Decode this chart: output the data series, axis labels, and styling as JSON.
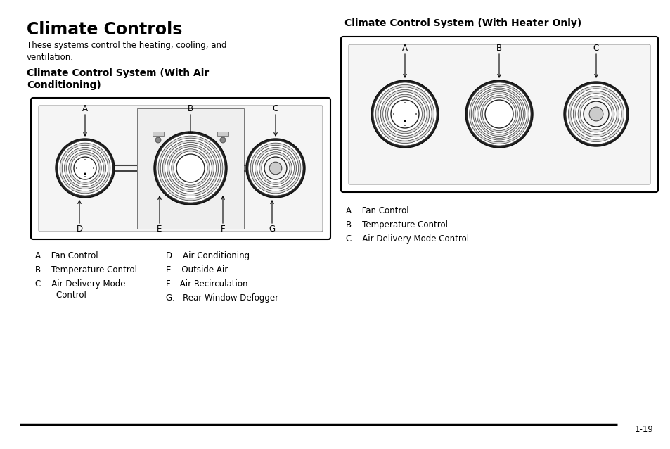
{
  "title": "Climate Controls",
  "subtitle": "These systems control the heating, cooling, and\nventilation.",
  "subheading1": "Climate Control System (With Air\nConditioning)",
  "subheading2": "Climate Control System (With Heater Only)",
  "items_col1": [
    "A.   Fan Control",
    "B.   Temperature Control",
    "C.   Air Delivery Mode\n        Control"
  ],
  "items_col2": [
    "D.   Air Conditioning",
    "E.   Outside Air",
    "F.   Air Recirculation",
    "G.   Rear Window Defogger"
  ],
  "right_labels": [
    "A.   Fan Control",
    "B.   Temperature Control",
    "C.   Air Delivery Mode Control"
  ],
  "page_num": "1-19",
  "bg_color": "#ffffff",
  "text_color": "#000000",
  "title_fontsize": 17,
  "subtitle_fontsize": 8.5,
  "subhead_fontsize": 10,
  "label_fontsize": 8.5,
  "caption_fontsize": 8.5,
  "pagenum_fontsize": 8.5
}
